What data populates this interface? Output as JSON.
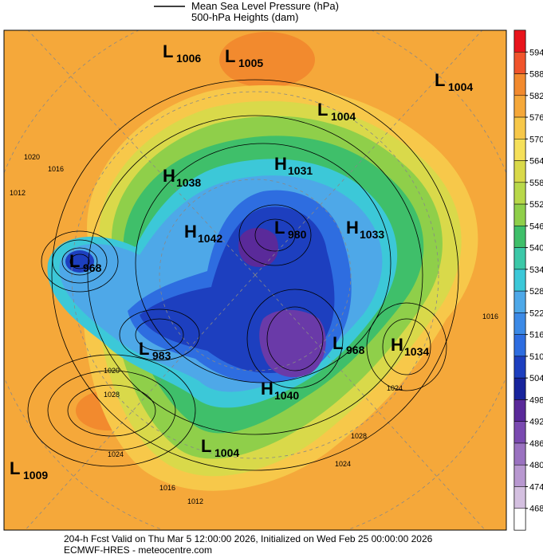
{
  "header": {
    "mslp_label": "Mean Sea Level Pressure (hPa)",
    "heights_label": "500-hPa Heights (dam)"
  },
  "colorbar": {
    "ticks": [
      594,
      588,
      582,
      576,
      570,
      564,
      558,
      552,
      546,
      540,
      534,
      528,
      522,
      516,
      510,
      504,
      498,
      492,
      486,
      480,
      474,
      468
    ],
    "colors": [
      "#e8141c",
      "#f0542c",
      "#f28a2e",
      "#f5a83a",
      "#f7c84a",
      "#f5e05a",
      "#d9d94a",
      "#b8d84a",
      "#8fcf4a",
      "#3fbf6a",
      "#3cc8a8",
      "#3cc8d8",
      "#4ea8e8",
      "#3c8ae6",
      "#2e6de0",
      "#1d3fbf",
      "#18249c",
      "#5a2a9a",
      "#7a4ab0",
      "#9a72c0",
      "#b898d0",
      "#d4c0e0",
      "#ffffff"
    ]
  },
  "centers": [
    {
      "kind": "L",
      "pressure": 1006
    },
    {
      "kind": "L",
      "pressure": 1005
    },
    {
      "kind": "L",
      "pressure": 1004
    },
    {
      "kind": "L",
      "pressure": 1004
    },
    {
      "kind": "H",
      "pressure": 1038
    },
    {
      "kind": "H",
      "pressure": 1031
    },
    {
      "kind": "H",
      "pressure": 1042
    },
    {
      "kind": "L",
      "pressure": 980
    },
    {
      "kind": "H",
      "pressure": 1033
    },
    {
      "kind": "L",
      "pressure": 968
    },
    {
      "kind": "L",
      "pressure": 983
    },
    {
      "kind": "L",
      "pressure": 968
    },
    {
      "kind": "H",
      "pressure": 1034
    },
    {
      "kind": "H",
      "pressure": 1040
    },
    {
      "kind": "L",
      "pressure": 1004
    },
    {
      "kind": "L",
      "pressure": 1009
    }
  ],
  "isobar_labels": [
    1020,
    1016,
    1012,
    1028,
    1024,
    1016,
    1012,
    1020,
    1024,
    1028,
    1024,
    1016
  ],
  "footer": {
    "valid": "204-h Fcst Valid on Thu Mar  5 12:00:00 2026, Initialized on Wed Feb 25 00:00:00 2026",
    "source": "ECMWF-HRES  - meteocentre.com"
  }
}
